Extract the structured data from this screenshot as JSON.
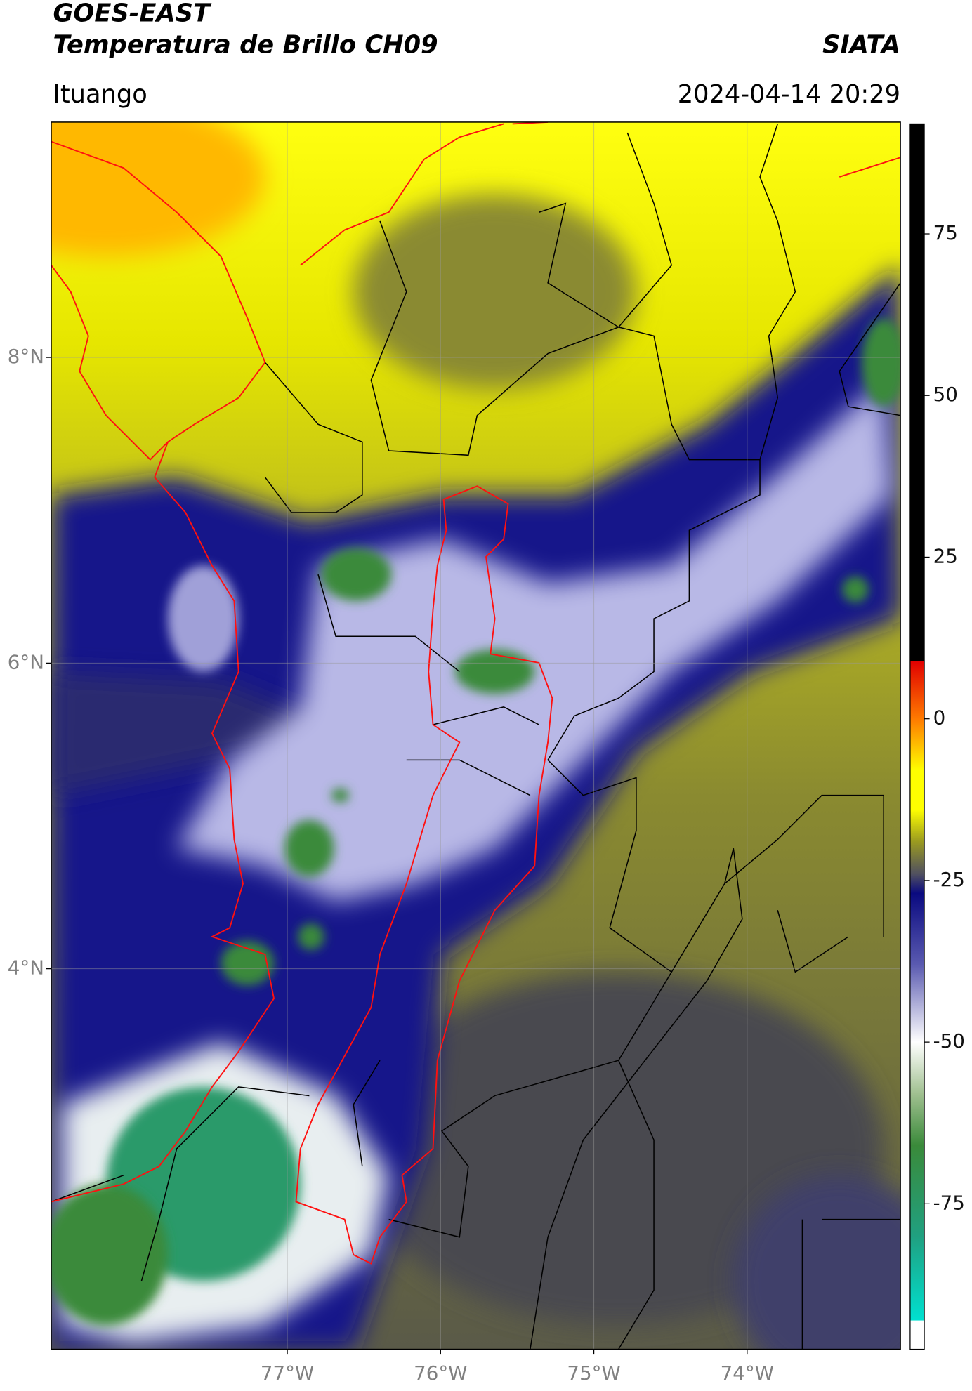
{
  "chart_data": {
    "type": "map",
    "title": "GOES-EAST",
    "subtitle": "Temperatura de Brillo CH09",
    "source": "SIATA",
    "region": "Ituango",
    "datetime": "2024-04-14 20:29",
    "xlim": [
      -78.54,
      -73.0
    ],
    "ylim": [
      1.51,
      9.54
    ],
    "xticks": [
      {
        "value": -77,
        "label": "77°W"
      },
      {
        "value": -76,
        "label": "76°W"
      },
      {
        "value": -75,
        "label": "75°W"
      },
      {
        "value": -74,
        "label": "74°W"
      }
    ],
    "yticks": [
      {
        "value": 8,
        "label": "8°N"
      },
      {
        "value": 6,
        "label": "6°N"
      },
      {
        "value": 4,
        "label": "4°N"
      }
    ],
    "grid": true,
    "colorbar": {
      "lim": [
        -97.5,
        92
      ],
      "ticks": [
        75,
        50,
        25,
        0,
        -25,
        -50,
        -75
      ],
      "stops": [
        {
          "value": 92,
          "color": "#000000"
        },
        {
          "value": 9,
          "color": "#000000"
        },
        {
          "value": 8.9,
          "color": "#e00000"
        },
        {
          "value": 0,
          "color": "#ff7a00"
        },
        {
          "value": -8,
          "color": "#ffff00"
        },
        {
          "value": -14,
          "color": "#ffff00"
        },
        {
          "value": -19,
          "color": "#9a9a20"
        },
        {
          "value": -24,
          "color": "#505060"
        },
        {
          "value": -27,
          "color": "#0a0a80"
        },
        {
          "value": -38,
          "color": "#5a5ab0"
        },
        {
          "value": -50,
          "color": "#ffffff"
        },
        {
          "value": -58,
          "color": "#a0c090"
        },
        {
          "value": -66,
          "color": "#3a8a3a"
        },
        {
          "value": -80,
          "color": "#20a080"
        },
        {
          "value": -93,
          "color": "#00e0d0"
        },
        {
          "value": -93.1,
          "color": "#ffffff"
        },
        {
          "value": -97.5,
          "color": "#ffffff"
        }
      ]
    }
  }
}
